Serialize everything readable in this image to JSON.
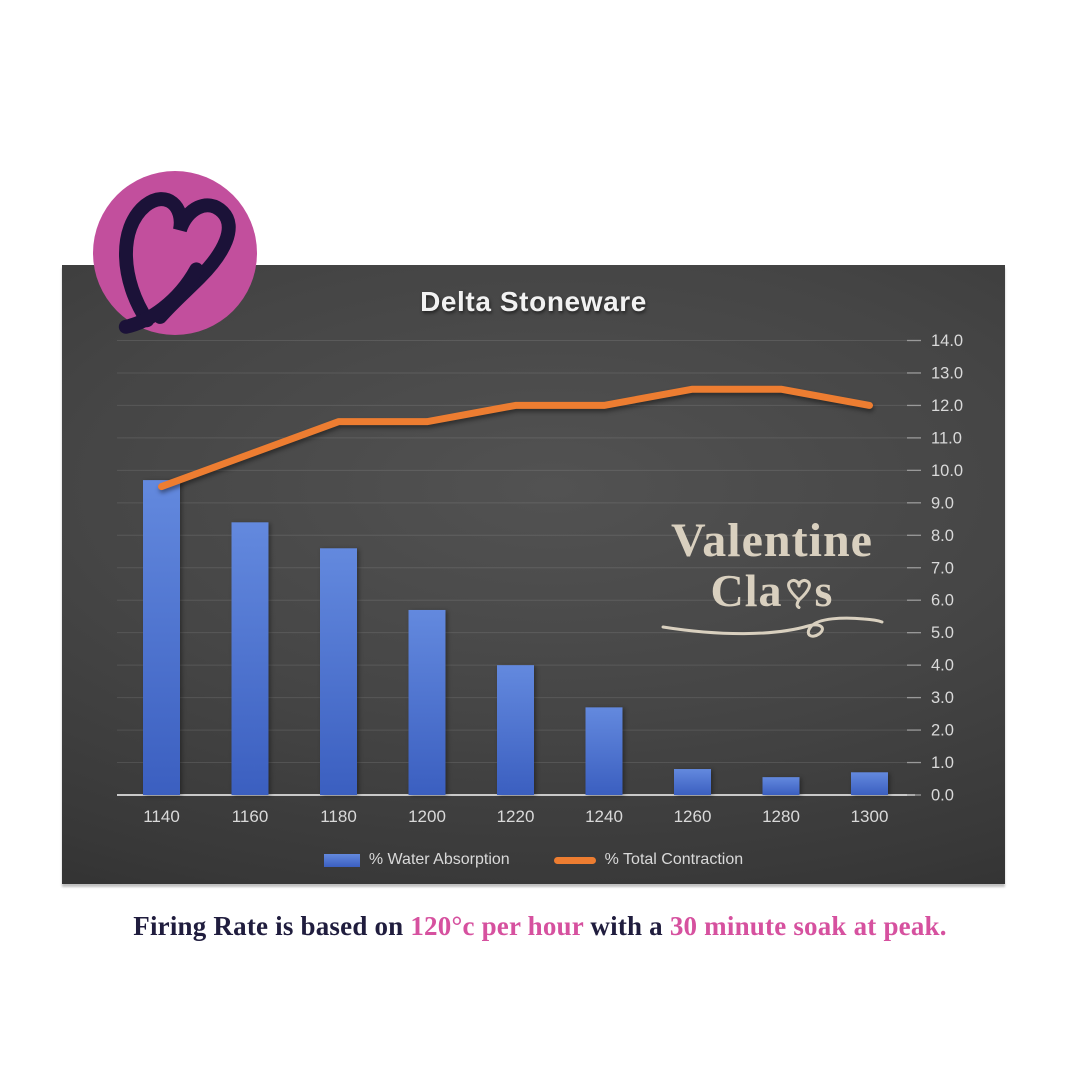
{
  "title": "Delta Stoneware",
  "logo": {
    "label": "valentine-clays-heart-logo",
    "circle_color": "#c24f9d",
    "heart_color": "#1b1238"
  },
  "watermark": {
    "line1": "Valentine",
    "line2_prefix": "Cla",
    "line2_suffix": "s",
    "color": "#d9d0bf"
  },
  "chart_data": {
    "type": "combo",
    "title": "Delta Stoneware",
    "categories": [
      "1140",
      "1160",
      "1180",
      "1200",
      "1220",
      "1240",
      "1260",
      "1280",
      "1300"
    ],
    "series": [
      {
        "name": "% Water Absorption",
        "type": "bar",
        "color_top": "#6389de",
        "color_bottom": "#3b5fc0",
        "values": [
          9.7,
          8.4,
          7.6,
          5.7,
          4.0,
          2.7,
          0.8,
          0.55,
          0.7
        ]
      },
      {
        "name": "% Total Contraction",
        "type": "line",
        "color": "#ED7D31",
        "values": [
          9.5,
          10.5,
          11.5,
          11.5,
          12.0,
          12.0,
          12.5,
          12.5,
          12.0
        ]
      }
    ],
    "xlabel": "",
    "ylabel": "",
    "ylim": [
      0,
      14
    ],
    "ytick_step": 1.0,
    "ytick_decimals": 1,
    "yaxis_side": "right",
    "grid": true,
    "legend_position": "bottom",
    "axis_text_color": "#d9d9d9",
    "gridline_color": "rgba(255,255,255,0.10)",
    "axisline_color": "#c9c9c9",
    "tickmark_color": "#9a9a9a"
  },
  "caption": {
    "segments": [
      {
        "text": "Firing Rate is based on ",
        "color": "#201d3e"
      },
      {
        "text": "120°c per hour",
        "color": "#d6519f"
      },
      {
        "text": " with a ",
        "color": "#201d3e"
      },
      {
        "text": "30 minute soak at peak.",
        "color": "#d6519f"
      }
    ]
  }
}
